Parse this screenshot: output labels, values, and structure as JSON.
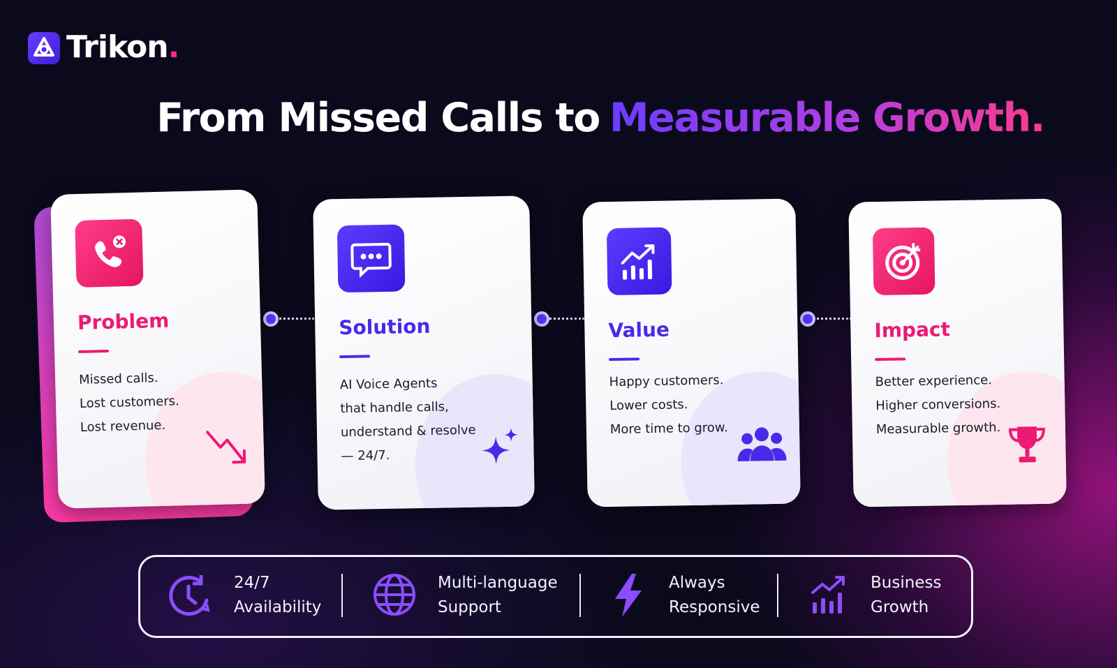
{
  "brand": {
    "name": "Trikon",
    "suffix": "."
  },
  "title": {
    "lead": "From Missed Calls to",
    "highlight": "Measurable Growth."
  },
  "cards": [
    {
      "title": "Problem",
      "lines": [
        "Missed calls.",
        "Lost customers.",
        "Lost revenue."
      ]
    },
    {
      "title": "Solution",
      "lines": [
        "AI Voice Agents",
        "that handle calls,",
        "understand & resolve",
        "— 24/7."
      ]
    },
    {
      "title": "Value",
      "lines": [
        "Happy customers.",
        "Lower costs.",
        "More time to grow."
      ]
    },
    {
      "title": "Impact",
      "lines": [
        "Better experience.",
        "Higher conversions.",
        "Measurable growth."
      ]
    }
  ],
  "features": [
    {
      "lines": [
        "24/7",
        "Availability"
      ]
    },
    {
      "lines": [
        "Multi-language",
        "Support"
      ]
    },
    {
      "lines": [
        "Always",
        "Responsive"
      ]
    },
    {
      "lines": [
        "Business",
        "Growth"
      ]
    }
  ]
}
